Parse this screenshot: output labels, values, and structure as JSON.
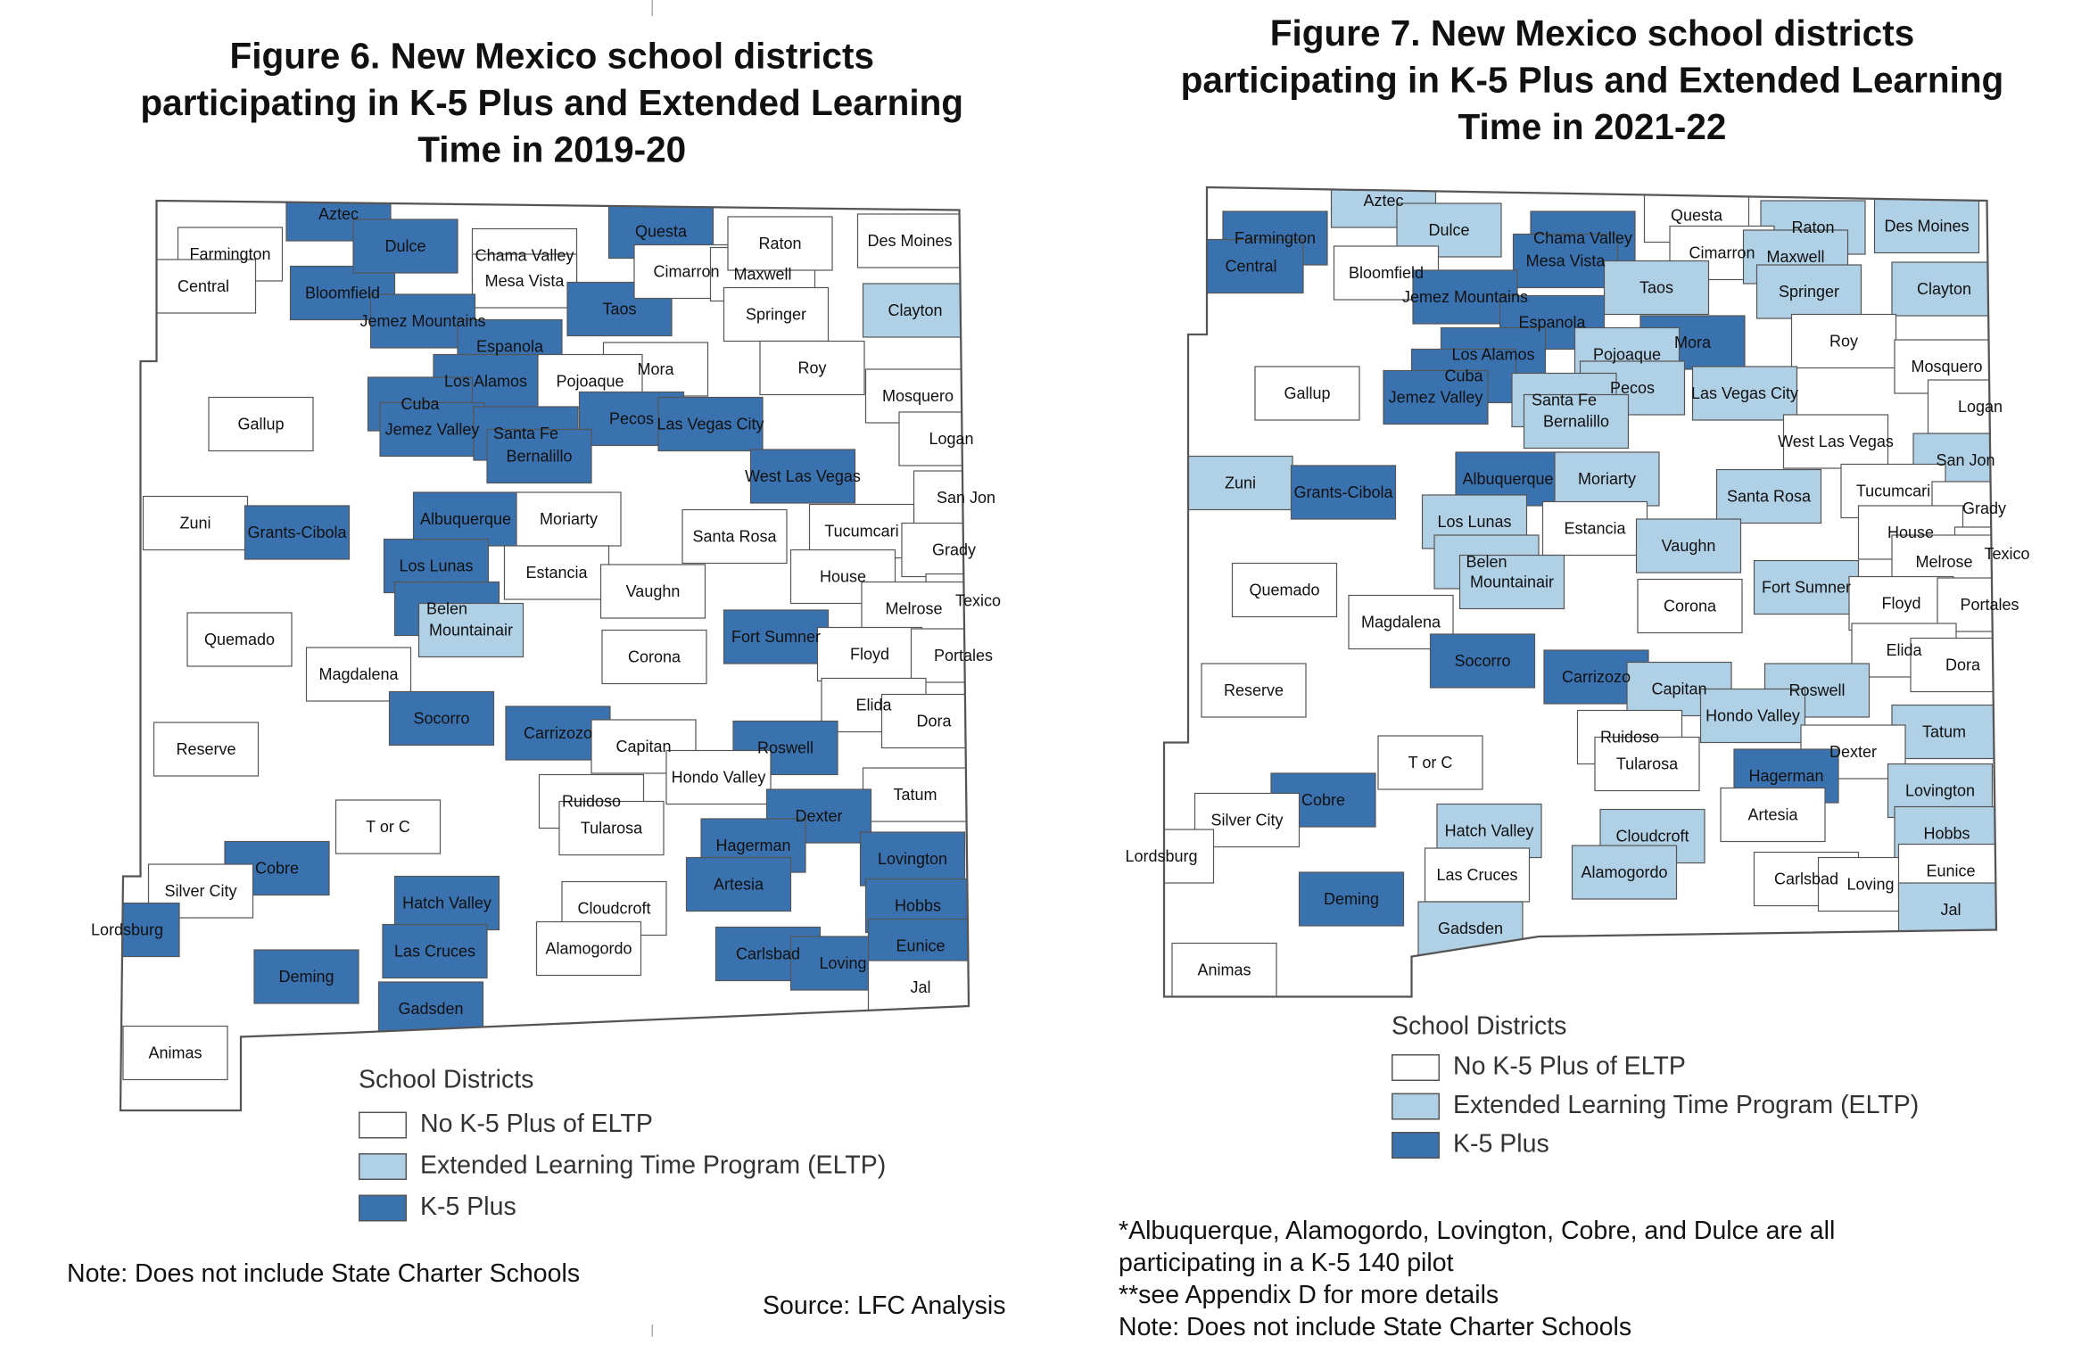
{
  "colors": {
    "none": "#ffffff",
    "eltp": "#b0d0e6",
    "k5": "#3a72b0",
    "border": "#555555"
  },
  "figure6": {
    "title_lines": [
      "Figure 6. New Mexico school districts",
      "participating in K-5 Plus and Extended Learning",
      "Time in 2019-20"
    ],
    "legend": {
      "title": "School Districts",
      "items": [
        {
          "label": "No K-5 Plus of ELTP",
          "status": "none"
        },
        {
          "label": "Extended Learning Time Program (ELTP)",
          "status": "eltp"
        },
        {
          "label": "K-5 Plus",
          "status": "k5"
        }
      ]
    },
    "note": "Note: Does not include State Charter Schools",
    "source": "Source: LFC Analysis",
    "districts": [
      {
        "name": "Farmington",
        "status": "none"
      },
      {
        "name": "Central",
        "status": "none"
      },
      {
        "name": "Aztec",
        "status": "k5"
      },
      {
        "name": "Bloomfield",
        "status": "k5"
      },
      {
        "name": "Dulce",
        "status": "k5"
      },
      {
        "name": "Chama Valley",
        "status": "none"
      },
      {
        "name": "Mesa Vista",
        "status": "none"
      },
      {
        "name": "Questa",
        "status": "k5"
      },
      {
        "name": "Taos",
        "status": "k5"
      },
      {
        "name": "Cimarron",
        "status": "none"
      },
      {
        "name": "Maxwell",
        "status": "none"
      },
      {
        "name": "Raton",
        "status": "none"
      },
      {
        "name": "Des Moines",
        "status": "none"
      },
      {
        "name": "Springer",
        "status": "none"
      },
      {
        "name": "Clayton",
        "status": "eltp"
      },
      {
        "name": "Jemez Mountains",
        "status": "k5"
      },
      {
        "name": "Espanola",
        "status": "k5"
      },
      {
        "name": "Mora",
        "status": "none"
      },
      {
        "name": "Roy",
        "status": "none"
      },
      {
        "name": "Mosquero",
        "status": "none"
      },
      {
        "name": "Los Alamos",
        "status": "k5"
      },
      {
        "name": "Pojoaque",
        "status": "none"
      },
      {
        "name": "Cuba",
        "status": "k5"
      },
      {
        "name": "Gallup",
        "status": "none"
      },
      {
        "name": "Jemez Valley",
        "status": "k5"
      },
      {
        "name": "Santa Fe",
        "status": "k5"
      },
      {
        "name": "Pecos",
        "status": "k5"
      },
      {
        "name": "Las Vegas City",
        "status": "k5"
      },
      {
        "name": "Bernalillo",
        "status": "k5"
      },
      {
        "name": "Logan",
        "status": "none"
      },
      {
        "name": "West Las Vegas",
        "status": "k5"
      },
      {
        "name": "Zuni",
        "status": "none"
      },
      {
        "name": "Grants-Cibola",
        "status": "k5"
      },
      {
        "name": "Albuquerque",
        "status": "k5"
      },
      {
        "name": "Moriarty",
        "status": "none"
      },
      {
        "name": "San Jon",
        "status": "none"
      },
      {
        "name": "Santa Rosa",
        "status": "none"
      },
      {
        "name": "Tucumcari",
        "status": "none"
      },
      {
        "name": "Grady",
        "status": "none"
      },
      {
        "name": "Los Lunas",
        "status": "k5"
      },
      {
        "name": "Estancia",
        "status": "none"
      },
      {
        "name": "House",
        "status": "none"
      },
      {
        "name": "Vaughn",
        "status": "none"
      },
      {
        "name": "Texico",
        "status": "none"
      },
      {
        "name": "Belen",
        "status": "k5"
      },
      {
        "name": "Mountainair",
        "status": "eltp"
      },
      {
        "name": "Melrose",
        "status": "none"
      },
      {
        "name": "Fort Sumner",
        "status": "k5"
      },
      {
        "name": "Quemado",
        "status": "none"
      },
      {
        "name": "Floyd",
        "status": "none"
      },
      {
        "name": "Portales",
        "status": "none"
      },
      {
        "name": "Corona",
        "status": "none"
      },
      {
        "name": "Magdalena",
        "status": "none"
      },
      {
        "name": "Socorro",
        "status": "k5"
      },
      {
        "name": "Elida",
        "status": "none"
      },
      {
        "name": "Dora",
        "status": "none"
      },
      {
        "name": "Carrizozo",
        "status": "k5"
      },
      {
        "name": "Capitan",
        "status": "none"
      },
      {
        "name": "Roswell",
        "status": "k5"
      },
      {
        "name": "Reserve",
        "status": "none"
      },
      {
        "name": "Hondo Valley",
        "status": "none"
      },
      {
        "name": "Tatum",
        "status": "none"
      },
      {
        "name": "Ruidoso",
        "status": "none"
      },
      {
        "name": "Dexter",
        "status": "k5"
      },
      {
        "name": "T or C",
        "status": "none"
      },
      {
        "name": "Tularosa",
        "status": "none"
      },
      {
        "name": "Hagerman",
        "status": "k5"
      },
      {
        "name": "Cobre",
        "status": "k5"
      },
      {
        "name": "Lovington",
        "status": "k5"
      },
      {
        "name": "Artesia",
        "status": "k5"
      },
      {
        "name": "Silver City",
        "status": "none"
      },
      {
        "name": "Hatch Valley",
        "status": "k5"
      },
      {
        "name": "Cloudcroft",
        "status": "none"
      },
      {
        "name": "Hobbs",
        "status": "k5"
      },
      {
        "name": "Lordsburg",
        "status": "k5"
      },
      {
        "name": "Alamogordo",
        "status": "none"
      },
      {
        "name": "Las Cruces",
        "status": "k5"
      },
      {
        "name": "Carlsbad",
        "status": "k5"
      },
      {
        "name": "Loving",
        "status": "k5"
      },
      {
        "name": "Eunice",
        "status": "k5"
      },
      {
        "name": "Deming",
        "status": "k5"
      },
      {
        "name": "Jal",
        "status": "none"
      },
      {
        "name": "Gadsden",
        "status": "k5"
      },
      {
        "name": "Animas",
        "status": "none"
      }
    ]
  },
  "figure7": {
    "title_lines": [
      "Figure 7. New Mexico school districts",
      "participating in K-5 Plus and Extended Learning",
      "Time in 2021-22"
    ],
    "legend": {
      "title": "School Districts",
      "items": [
        {
          "label": "No K-5 Plus of ELTP",
          "status": "none"
        },
        {
          "label": "Extended Learning Time Program (ELTP)",
          "status": "eltp"
        },
        {
          "label": "K-5 Plus",
          "status": "k5"
        }
      ]
    },
    "notes": [
      "*Albuquerque, Alamogordo, Lovington, Cobre, and Dulce are all",
      "participating in a K-5 140 pilot",
      "**see Appendix D for more details",
      "Note: Does not include State Charter Schools"
    ],
    "districts": [
      {
        "name": "Aztec",
        "status": "eltp"
      },
      {
        "name": "Farmington",
        "status": "k5"
      },
      {
        "name": "Central",
        "status": "k5"
      },
      {
        "name": "Dulce",
        "status": "eltp"
      },
      {
        "name": "Chama Valley",
        "status": "k5"
      },
      {
        "name": "Mesa Vista",
        "status": "k5"
      },
      {
        "name": "Questa",
        "status": "none"
      },
      {
        "name": "Raton",
        "status": "eltp"
      },
      {
        "name": "Des Moines",
        "status": "eltp"
      },
      {
        "name": "Cimarron",
        "status": "none"
      },
      {
        "name": "Maxwell",
        "status": "eltp"
      },
      {
        "name": "Bloomfield",
        "status": "none"
      },
      {
        "name": "Taos",
        "status": "eltp"
      },
      {
        "name": "Springer",
        "status": "eltp"
      },
      {
        "name": "Clayton",
        "status": "eltp"
      },
      {
        "name": "Jemez Mountains",
        "status": "k5"
      },
      {
        "name": "Espanola",
        "status": "k5"
      },
      {
        "name": "Mora",
        "status": "k5"
      },
      {
        "name": "Roy",
        "status": "none"
      },
      {
        "name": "Los Alamos",
        "status": "k5"
      },
      {
        "name": "Pojoaque",
        "status": "eltp"
      },
      {
        "name": "Mosquero",
        "status": "none"
      },
      {
        "name": "Cuba",
        "status": "k5"
      },
      {
        "name": "Gallup",
        "status": "none"
      },
      {
        "name": "Pecos",
        "status": "eltp"
      },
      {
        "name": "Las Vegas City",
        "status": "eltp"
      },
      {
        "name": "Jemez Valley",
        "status": "k5"
      },
      {
        "name": "Santa Fe",
        "status": "eltp"
      },
      {
        "name": "Logan",
        "status": "none"
      },
      {
        "name": "Bernalillo",
        "status": "eltp"
      },
      {
        "name": "West Las Vegas",
        "status": "none"
      },
      {
        "name": "San Jon",
        "status": "eltp"
      },
      {
        "name": "Albuquerque",
        "status": "k5"
      },
      {
        "name": "Moriarty",
        "status": "eltp"
      },
      {
        "name": "Zuni",
        "status": "eltp"
      },
      {
        "name": "Grants-Cibola",
        "status": "k5"
      },
      {
        "name": "Santa Rosa",
        "status": "eltp"
      },
      {
        "name": "Tucumcari",
        "status": "none"
      },
      {
        "name": "Grady",
        "status": "none"
      },
      {
        "name": "Los Lunas",
        "status": "eltp"
      },
      {
        "name": "Estancia",
        "status": "none"
      },
      {
        "name": "House",
        "status": "none"
      },
      {
        "name": "Vaughn",
        "status": "eltp"
      },
      {
        "name": "Texico",
        "status": "none"
      },
      {
        "name": "Melrose",
        "status": "none"
      },
      {
        "name": "Belen",
        "status": "eltp"
      },
      {
        "name": "Mountainair",
        "status": "eltp"
      },
      {
        "name": "Quemado",
        "status": "none"
      },
      {
        "name": "Fort Sumner",
        "status": "eltp"
      },
      {
        "name": "Floyd",
        "status": "none"
      },
      {
        "name": "Portales",
        "status": "none"
      },
      {
        "name": "Corona",
        "status": "none"
      },
      {
        "name": "Magdalena",
        "status": "none"
      },
      {
        "name": "Elida",
        "status": "none"
      },
      {
        "name": "Dora",
        "status": "none"
      },
      {
        "name": "Socorro",
        "status": "k5"
      },
      {
        "name": "Carrizozo",
        "status": "k5"
      },
      {
        "name": "Capitan",
        "status": "eltp"
      },
      {
        "name": "Roswell",
        "status": "eltp"
      },
      {
        "name": "Reserve",
        "status": "none"
      },
      {
        "name": "Hondo Valley",
        "status": "eltp"
      },
      {
        "name": "Tatum",
        "status": "eltp"
      },
      {
        "name": "Ruidoso",
        "status": "none"
      },
      {
        "name": "Dexter",
        "status": "none"
      },
      {
        "name": "T or C",
        "status": "none"
      },
      {
        "name": "Tularosa",
        "status": "none"
      },
      {
        "name": "Hagerman",
        "status": "k5"
      },
      {
        "name": "Lovington",
        "status": "eltp"
      },
      {
        "name": "Cobre",
        "status": "k5"
      },
      {
        "name": "Artesia",
        "status": "none"
      },
      {
        "name": "Silver City",
        "status": "none"
      },
      {
        "name": "Hatch Valley",
        "status": "eltp"
      },
      {
        "name": "Cloudcroft",
        "status": "eltp"
      },
      {
        "name": "Hobbs",
        "status": "eltp"
      },
      {
        "name": "Lordsburg",
        "status": "none"
      },
      {
        "name": "Alamogordo",
        "status": "eltp"
      },
      {
        "name": "Las Cruces",
        "status": "none"
      },
      {
        "name": "Carlsbad",
        "status": "none"
      },
      {
        "name": "Loving",
        "status": "none"
      },
      {
        "name": "Eunice",
        "status": "none"
      },
      {
        "name": "Deming",
        "status": "k5"
      },
      {
        "name": "Jal",
        "status": "eltp"
      },
      {
        "name": "Gadsden",
        "status": "eltp"
      },
      {
        "name": "Animas",
        "status": "none"
      }
    ]
  }
}
